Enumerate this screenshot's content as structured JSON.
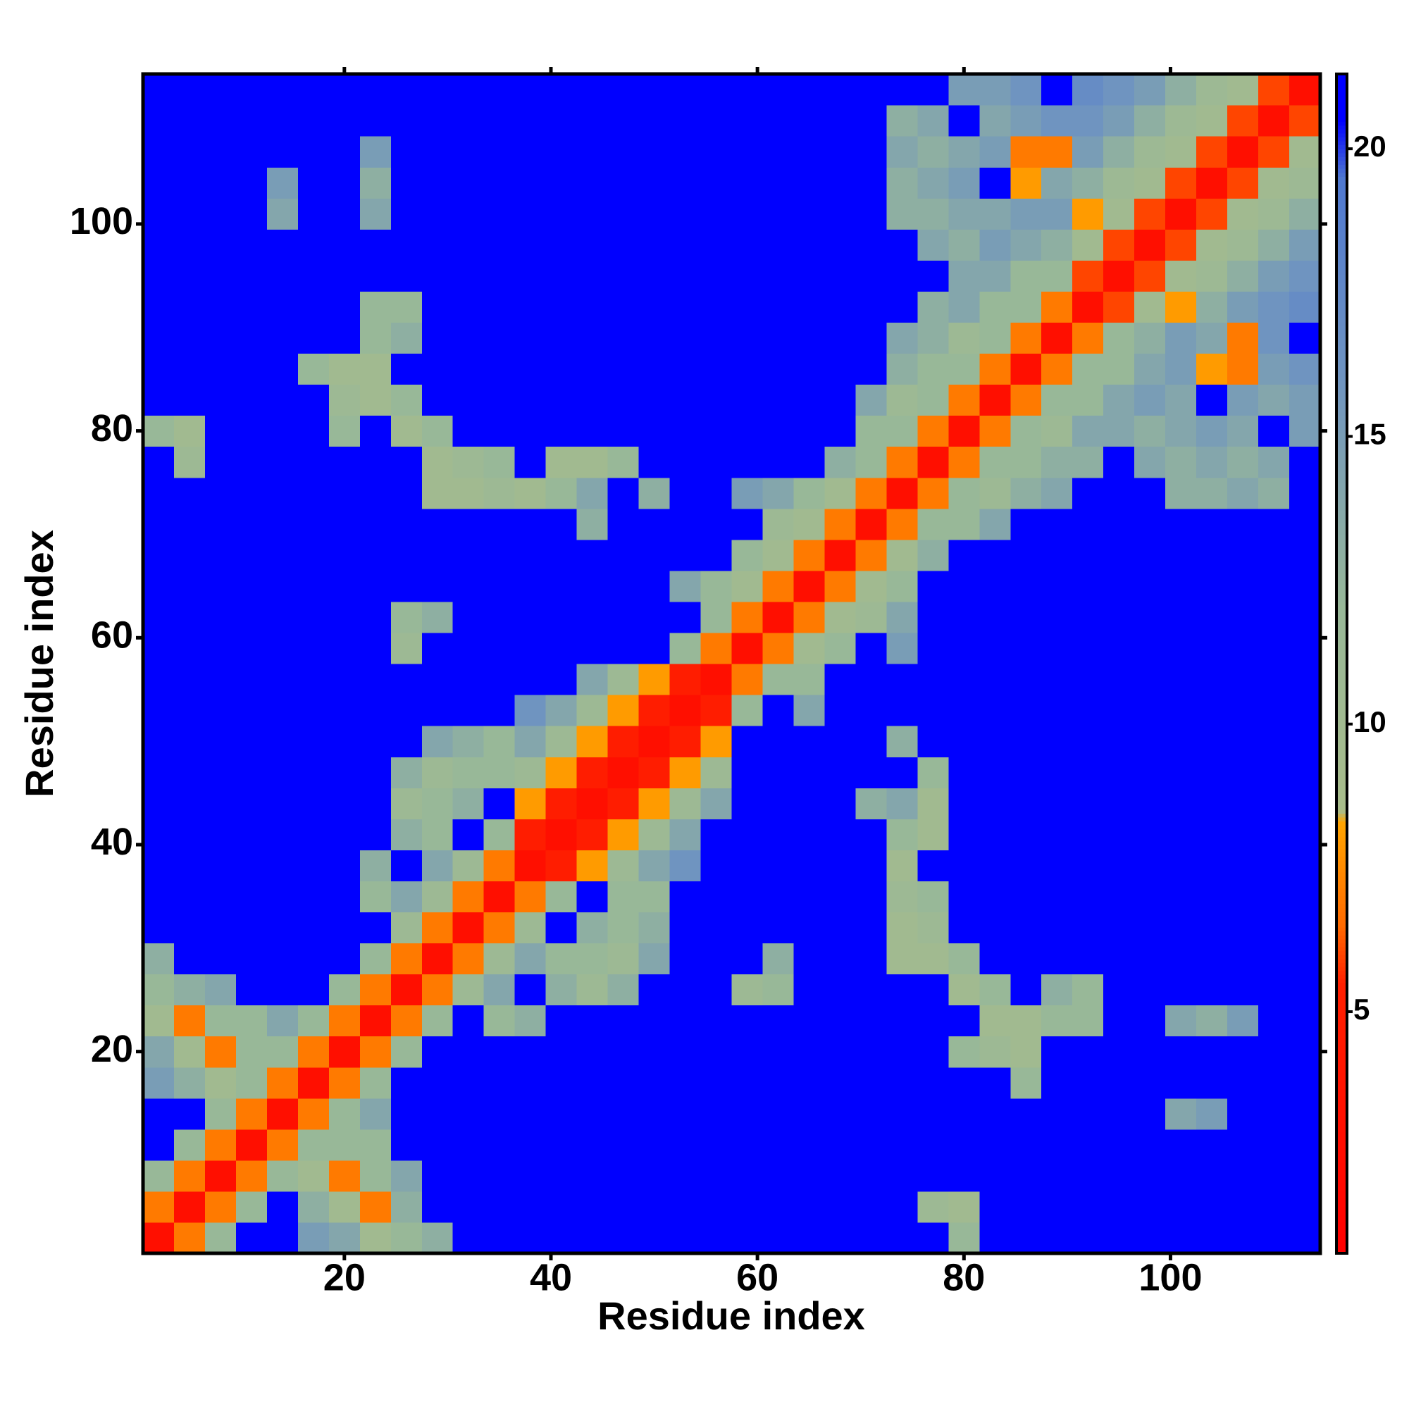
{
  "chart_data": {
    "type": "heatmap",
    "x_label": "Residue index",
    "y_label": "Residue index",
    "x": [
      2,
      5,
      8,
      11,
      14,
      17,
      20,
      23,
      26,
      29,
      32,
      35,
      38,
      41,
      44,
      47,
      50,
      53,
      56,
      59,
      62,
      65,
      68,
      71,
      74,
      77,
      80,
      83,
      86,
      89,
      92,
      95,
      98,
      101,
      104,
      107,
      110,
      113
    ],
    "y": [
      2,
      5,
      8,
      11,
      14,
      17,
      20,
      23,
      26,
      29,
      32,
      35,
      38,
      41,
      44,
      47,
      50,
      53,
      56,
      59,
      62,
      65,
      68,
      71,
      74,
      77,
      80,
      83,
      86,
      89,
      92,
      95,
      98,
      101,
      104,
      107,
      110,
      113
    ],
    "xlim": [
      0.5,
      114.5
    ],
    "ylim": [
      0.5,
      114.5
    ],
    "xticks": [
      20,
      40,
      60,
      80,
      100
    ],
    "yticks": [
      20,
      40,
      60,
      80,
      100
    ],
    "zlim": [
      0.8,
      21.3
    ],
    "zticks": [
      5,
      10,
      15,
      20
    ],
    "colorscale": [
      [
        0.8,
        "#ff0000"
      ],
      [
        5.5,
        "#ff2000"
      ],
      [
        6.5,
        "#ff6a00"
      ],
      [
        8.3,
        "#ffa500"
      ],
      [
        8.5,
        "#a8bc8a"
      ],
      [
        12,
        "#98b898"
      ],
      [
        16,
        "#6f94c0"
      ],
      [
        19.5,
        "#4f78d0"
      ],
      [
        20.5,
        "#0000ff"
      ]
    ],
    "z": [
      [
        3,
        7,
        12,
        21,
        21,
        15,
        14,
        10,
        12,
        13,
        21,
        21,
        21,
        21,
        21,
        21,
        21,
        21,
        21,
        21,
        21,
        21,
        21,
        21,
        21,
        21,
        12,
        21,
        21,
        21,
        21,
        21,
        21,
        21,
        21,
        21,
        21,
        21
      ],
      [
        7,
        3,
        7,
        12,
        21,
        13,
        10,
        7,
        13,
        21,
        21,
        21,
        21,
        21,
        21,
        21,
        21,
        21,
        21,
        21,
        21,
        21,
        21,
        21,
        21,
        11,
        10,
        21,
        21,
        21,
        21,
        21,
        21,
        21,
        21,
        21,
        21,
        21
      ],
      [
        12,
        7,
        3,
        7,
        12,
        10,
        7,
        12,
        14,
        21,
        21,
        21,
        21,
        21,
        21,
        21,
        21,
        21,
        21,
        21,
        21,
        21,
        21,
        21,
        21,
        21,
        21,
        21,
        21,
        21,
        21,
        21,
        21,
        21,
        21,
        21,
        21,
        21
      ],
      [
        21,
        12,
        7,
        3,
        7,
        12,
        12,
        12,
        21,
        21,
        21,
        21,
        21,
        21,
        21,
        21,
        21,
        21,
        21,
        21,
        21,
        21,
        21,
        21,
        21,
        21,
        21,
        21,
        21,
        21,
        21,
        21,
        21,
        21,
        21,
        21,
        21,
        21
      ],
      [
        21,
        21,
        12,
        7,
        3,
        7,
        12,
        14,
        21,
        21,
        21,
        21,
        21,
        21,
        21,
        21,
        21,
        21,
        21,
        21,
        21,
        21,
        21,
        21,
        21,
        21,
        21,
        21,
        21,
        21,
        21,
        21,
        21,
        14,
        15,
        21,
        21,
        21
      ],
      [
        15,
        13,
        10,
        12,
        7,
        3,
        7,
        12,
        21,
        21,
        21,
        21,
        21,
        21,
        21,
        21,
        21,
        21,
        21,
        21,
        21,
        21,
        21,
        21,
        21,
        21,
        21,
        21,
        12,
        21,
        21,
        21,
        21,
        21,
        21,
        21,
        21,
        21
      ],
      [
        14,
        10,
        7,
        12,
        12,
        7,
        3,
        7,
        12,
        21,
        21,
        21,
        21,
        21,
        21,
        21,
        21,
        21,
        21,
        21,
        21,
        21,
        21,
        21,
        21,
        21,
        12,
        11,
        10,
        21,
        21,
        21,
        21,
        21,
        21,
        21,
        21,
        21
      ],
      [
        10,
        7,
        12,
        12,
        14,
        12,
        7,
        3,
        7,
        12,
        21,
        12,
        13,
        21,
        21,
        21,
        21,
        21,
        21,
        21,
        21,
        21,
        21,
        21,
        21,
        21,
        21,
        10,
        10,
        12,
        12,
        21,
        21,
        14,
        13,
        15,
        21,
        21
      ],
      [
        12,
        13,
        14,
        21,
        21,
        21,
        12,
        7,
        3,
        7,
        11,
        14,
        21,
        13,
        11,
        13,
        21,
        21,
        21,
        11,
        12,
        21,
        21,
        21,
        21,
        21,
        10,
        12,
        21,
        13,
        12,
        21,
        21,
        21,
        21,
        21,
        21,
        21
      ],
      [
        13,
        21,
        21,
        21,
        21,
        21,
        21,
        12,
        7,
        3,
        7,
        11,
        14,
        12,
        12,
        11,
        14,
        21,
        21,
        21,
        13,
        21,
        21,
        21,
        10,
        10,
        12,
        21,
        21,
        21,
        21,
        21,
        21,
        21,
        21,
        21,
        21,
        21
      ],
      [
        21,
        21,
        21,
        21,
        21,
        21,
        21,
        21,
        11,
        7,
        3,
        7,
        11,
        21,
        13,
        12,
        13,
        21,
        21,
        21,
        21,
        21,
        21,
        21,
        10,
        11,
        21,
        21,
        21,
        21,
        21,
        21,
        21,
        21,
        21,
        21,
        21,
        21
      ],
      [
        21,
        21,
        21,
        21,
        21,
        21,
        21,
        12,
        14,
        11,
        7,
        3,
        7,
        12,
        21,
        12,
        12,
        21,
        21,
        21,
        21,
        21,
        21,
        21,
        11,
        12,
        21,
        21,
        21,
        21,
        21,
        21,
        21,
        21,
        21,
        21,
        21,
        21
      ],
      [
        21,
        21,
        21,
        21,
        21,
        21,
        21,
        13,
        21,
        14,
        11,
        7,
        3,
        5,
        8,
        11,
        14,
        16,
        21,
        21,
        21,
        21,
        21,
        21,
        10,
        21,
        21,
        21,
        21,
        21,
        21,
        21,
        21,
        21,
        21,
        21,
        21,
        21
      ],
      [
        21,
        21,
        21,
        21,
        21,
        21,
        21,
        21,
        13,
        12,
        21,
        12,
        5,
        3,
        5,
        8,
        11,
        14,
        21,
        21,
        21,
        21,
        21,
        21,
        12,
        10,
        21,
        21,
        21,
        21,
        21,
        21,
        21,
        21,
        21,
        21,
        21,
        21
      ],
      [
        21,
        21,
        21,
        21,
        21,
        21,
        21,
        21,
        11,
        12,
        13,
        21,
        8,
        5,
        3,
        5,
        8,
        11,
        14,
        21,
        21,
        21,
        21,
        13,
        14,
        10,
        21,
        21,
        21,
        21,
        21,
        21,
        21,
        21,
        21,
        21,
        21,
        21
      ],
      [
        21,
        21,
        21,
        21,
        21,
        21,
        21,
        21,
        13,
        11,
        12,
        12,
        11,
        8,
        5,
        3,
        5,
        8,
        11,
        21,
        21,
        21,
        21,
        21,
        21,
        12,
        21,
        21,
        21,
        21,
        21,
        21,
        21,
        21,
        21,
        21,
        21,
        21
      ],
      [
        21,
        21,
        21,
        21,
        21,
        21,
        21,
        21,
        21,
        14,
        13,
        12,
        14,
        11,
        8,
        5,
        3,
        5,
        8,
        21,
        21,
        21,
        21,
        21,
        13,
        21,
        21,
        21,
        21,
        21,
        21,
        21,
        21,
        21,
        21,
        21,
        21,
        21
      ],
      [
        21,
        21,
        21,
        21,
        21,
        21,
        21,
        21,
        21,
        21,
        21,
        21,
        16,
        14,
        11,
        8,
        5,
        3,
        5,
        12,
        21,
        14,
        21,
        21,
        21,
        21,
        21,
        21,
        21,
        21,
        21,
        21,
        21,
        21,
        21,
        21,
        21,
        21
      ],
      [
        21,
        21,
        21,
        21,
        21,
        21,
        21,
        21,
        21,
        21,
        21,
        21,
        21,
        21,
        14,
        11,
        8,
        5,
        3,
        7,
        12,
        12,
        21,
        21,
        21,
        21,
        21,
        21,
        21,
        21,
        21,
        21,
        21,
        21,
        21,
        21,
        21,
        21
      ],
      [
        21,
        21,
        21,
        21,
        21,
        21,
        21,
        21,
        11,
        21,
        21,
        21,
        21,
        21,
        21,
        21,
        21,
        12,
        7,
        3,
        7,
        10,
        12,
        21,
        15,
        21,
        21,
        21,
        21,
        21,
        21,
        21,
        21,
        21,
        21,
        21,
        21,
        21
      ],
      [
        21,
        21,
        21,
        21,
        21,
        21,
        21,
        21,
        12,
        13,
        21,
        21,
        21,
        21,
        21,
        21,
        21,
        21,
        12,
        7,
        3,
        7,
        10,
        11,
        14,
        21,
        21,
        21,
        21,
        21,
        21,
        21,
        21,
        21,
        21,
        21,
        21,
        21
      ],
      [
        21,
        21,
        21,
        21,
        21,
        21,
        21,
        21,
        21,
        21,
        21,
        21,
        21,
        21,
        21,
        21,
        21,
        14,
        12,
        10,
        7,
        3,
        7,
        10,
        12,
        21,
        21,
        21,
        21,
        21,
        21,
        21,
        21,
        21,
        21,
        21,
        21,
        21
      ],
      [
        21,
        21,
        21,
        21,
        21,
        21,
        21,
        21,
        21,
        21,
        21,
        21,
        21,
        21,
        21,
        21,
        21,
        21,
        21,
        12,
        10,
        7,
        3,
        7,
        10,
        13,
        21,
        21,
        21,
        21,
        21,
        21,
        21,
        21,
        21,
        21,
        21,
        21
      ],
      [
        21,
        21,
        21,
        21,
        21,
        21,
        21,
        21,
        21,
        21,
        21,
        21,
        21,
        21,
        13,
        21,
        21,
        21,
        21,
        21,
        11,
        10,
        7,
        3,
        7,
        12,
        12,
        14,
        21,
        21,
        21,
        21,
        21,
        21,
        21,
        21,
        21,
        21
      ],
      [
        21,
        21,
        21,
        21,
        21,
        21,
        21,
        21,
        21,
        10,
        10,
        11,
        10,
        12,
        14,
        21,
        13,
        21,
        21,
        15,
        14,
        12,
        10,
        7,
        3,
        7,
        12,
        11,
        13,
        14,
        21,
        21,
        21,
        13,
        13,
        14,
        13,
        21
      ],
      [
        21,
        11,
        21,
        21,
        21,
        21,
        21,
        21,
        21,
        10,
        11,
        12,
        21,
        10,
        10,
        12,
        21,
        21,
        21,
        21,
        21,
        21,
        13,
        12,
        7,
        3,
        7,
        12,
        12,
        13,
        13,
        21,
        14,
        13,
        14,
        13,
        14,
        21
      ],
      [
        12,
        10,
        21,
        21,
        21,
        21,
        12,
        21,
        10,
        12,
        21,
        21,
        21,
        21,
        21,
        21,
        21,
        21,
        21,
        21,
        21,
        21,
        21,
        12,
        12,
        7,
        3,
        7,
        12,
        11,
        14,
        14,
        13,
        14,
        15,
        14,
        21,
        15
      ],
      [
        21,
        21,
        21,
        21,
        21,
        21,
        11,
        10,
        12,
        21,
        21,
        21,
        21,
        21,
        21,
        21,
        21,
        21,
        21,
        21,
        21,
        21,
        21,
        14,
        11,
        12,
        7,
        3,
        7,
        12,
        12,
        14,
        15,
        14,
        21,
        15,
        14,
        15
      ],
      [
        21,
        21,
        21,
        21,
        21,
        12,
        10,
        10,
        21,
        21,
        21,
        21,
        21,
        21,
        21,
        21,
        21,
        21,
        21,
        21,
        21,
        21,
        21,
        21,
        13,
        12,
        12,
        7,
        3,
        7,
        12,
        12,
        14,
        15,
        8,
        7,
        15,
        16
      ],
      [
        21,
        21,
        21,
        21,
        21,
        21,
        21,
        12,
        13,
        21,
        21,
        21,
        21,
        21,
        21,
        21,
        21,
        21,
        21,
        21,
        21,
        21,
        21,
        21,
        14,
        13,
        11,
        12,
        7,
        3,
        7,
        12,
        13,
        15,
        14,
        7,
        16,
        21
      ],
      [
        21,
        21,
        21,
        21,
        21,
        21,
        21,
        12,
        12,
        21,
        21,
        21,
        21,
        21,
        21,
        21,
        21,
        21,
        21,
        21,
        21,
        21,
        21,
        21,
        21,
        13,
        14,
        12,
        12,
        7,
        3,
        6,
        10,
        8,
        13,
        15,
        16,
        17
      ],
      [
        21,
        21,
        21,
        21,
        21,
        21,
        21,
        21,
        21,
        21,
        21,
        21,
        21,
        21,
        21,
        21,
        21,
        21,
        21,
        21,
        21,
        21,
        21,
        21,
        21,
        21,
        14,
        14,
        12,
        12,
        6,
        3,
        6,
        10,
        11,
        13,
        15,
        16
      ],
      [
        21,
        21,
        21,
        21,
        21,
        21,
        21,
        21,
        21,
        21,
        21,
        21,
        21,
        21,
        21,
        21,
        21,
        21,
        21,
        21,
        21,
        21,
        21,
        21,
        21,
        14,
        13,
        15,
        14,
        13,
        10,
        6,
        3,
        6,
        10,
        11,
        13,
        15
      ],
      [
        21,
        21,
        21,
        21,
        14,
        21,
        21,
        14,
        21,
        21,
        21,
        21,
        21,
        21,
        21,
        21,
        21,
        21,
        21,
        21,
        21,
        21,
        21,
        21,
        13,
        13,
        14,
        14,
        15,
        15,
        8,
        10,
        6,
        3,
        6,
        10,
        11,
        13
      ],
      [
        21,
        21,
        21,
        21,
        15,
        21,
        21,
        13,
        21,
        21,
        21,
        21,
        21,
        21,
        21,
        21,
        21,
        21,
        21,
        21,
        21,
        21,
        21,
        21,
        13,
        14,
        15,
        21,
        8,
        14,
        13,
        11,
        10,
        6,
        3,
        6,
        10,
        11
      ],
      [
        21,
        21,
        21,
        21,
        21,
        21,
        21,
        15,
        21,
        21,
        21,
        21,
        21,
        21,
        21,
        21,
        21,
        21,
        21,
        21,
        21,
        21,
        21,
        21,
        14,
        13,
        14,
        15,
        7,
        7,
        15,
        13,
        11,
        10,
        6,
        3,
        6,
        10
      ],
      [
        21,
        21,
        21,
        21,
        21,
        21,
        21,
        21,
        21,
        21,
        21,
        21,
        21,
        21,
        21,
        21,
        21,
        21,
        21,
        21,
        21,
        21,
        21,
        21,
        13,
        14,
        21,
        14,
        15,
        16,
        16,
        15,
        13,
        11,
        10,
        6,
        3,
        6
      ],
      [
        21,
        21,
        21,
        21,
        21,
        21,
        21,
        21,
        21,
        21,
        21,
        21,
        21,
        21,
        21,
        21,
        21,
        21,
        21,
        21,
        21,
        21,
        21,
        21,
        21,
        21,
        15,
        15,
        16,
        21,
        17,
        16,
        15,
        13,
        11,
        10,
        6,
        3
      ]
    ]
  }
}
